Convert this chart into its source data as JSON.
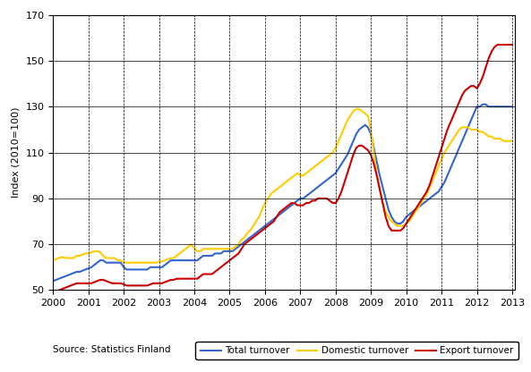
{
  "title": "",
  "ylabel": "Index (2010=100)",
  "source_text": "Source: Statistics Finland",
  "legend_labels": [
    "Total turnover",
    "Domestic turnover",
    "Export turnover"
  ],
  "legend_colors": [
    "#3366cc",
    "#ffcc00",
    "#cc0000"
  ],
  "ylim": [
    50,
    170
  ],
  "yticks": [
    50,
    70,
    90,
    110,
    130,
    150,
    170
  ],
  "xlim_start": 2000.0,
  "xlim_end": 2013.083,
  "xtick_labels": [
    "2000",
    "2001",
    "2002",
    "2003",
    "2004",
    "2005",
    "2006",
    "2007",
    "2008",
    "2009",
    "2010",
    "2011",
    "2012",
    "2013"
  ],
  "total_turnover": [
    54,
    54.5,
    55,
    55.5,
    56,
    56.5,
    57,
    57.5,
    58,
    58,
    58.5,
    59,
    59.5,
    60,
    61,
    62,
    63,
    63,
    62,
    62,
    62,
    62,
    62,
    62,
    60,
    59,
    59,
    59,
    59,
    59,
    59,
    59,
    59,
    60,
    60,
    60,
    60,
    60,
    61,
    62,
    63,
    63,
    63,
    63,
    63,
    63,
    63,
    63,
    63,
    63,
    64,
    65,
    65,
    65,
    65,
    66,
    66,
    66,
    67,
    67,
    67,
    67,
    68,
    69,
    70,
    71,
    72,
    73,
    74,
    75,
    76,
    77,
    78,
    79,
    80,
    81,
    82,
    83,
    84,
    85,
    86,
    87,
    88,
    89,
    90,
    90,
    91,
    92,
    93,
    94,
    95,
    96,
    97,
    98,
    99,
    100,
    101,
    103,
    105,
    107,
    109,
    112,
    115,
    118,
    120,
    121,
    122,
    121,
    118,
    112,
    106,
    100,
    95,
    90,
    85,
    82,
    80,
    79,
    79,
    80,
    82,
    83,
    84,
    85,
    86,
    87,
    88,
    89,
    90,
    91,
    92,
    93,
    95,
    97,
    100,
    103,
    106,
    109,
    112,
    115,
    118,
    121,
    124,
    127,
    130,
    130,
    131,
    131,
    130,
    130,
    130,
    130,
    130,
    130,
    130,
    130,
    130
  ],
  "domestic_turnover": [
    63,
    63.5,
    64,
    64.5,
    64,
    64,
    64,
    64,
    65,
    65,
    65.5,
    66,
    66,
    66.5,
    67,
    67,
    66.5,
    65,
    64,
    64,
    64,
    64,
    63,
    63,
    62,
    62,
    62,
    62,
    62,
    62,
    62,
    62,
    62,
    62,
    62,
    62,
    62.5,
    62.5,
    63,
    63.5,
    64,
    64,
    65,
    66,
    67,
    68,
    69,
    70,
    68,
    67,
    67,
    68,
    68,
    68,
    68,
    68,
    68,
    68,
    68,
    68,
    68,
    68,
    69,
    70,
    72,
    73,
    75,
    76,
    78,
    80,
    82,
    85,
    88,
    90,
    92,
    93,
    94,
    95,
    96,
    97,
    98,
    99,
    100,
    101,
    100,
    100,
    101,
    102,
    103,
    104,
    105,
    106,
    107,
    108,
    109,
    110,
    112,
    115,
    118,
    121,
    124,
    126,
    128,
    129,
    129,
    128,
    127,
    126,
    120,
    110,
    100,
    94,
    88,
    84,
    82,
    80,
    79,
    78,
    78,
    78,
    79,
    80,
    82,
    84,
    86,
    88,
    90,
    92,
    95,
    98,
    101,
    104,
    107,
    110,
    112,
    114,
    116,
    118,
    120,
    121,
    121,
    121,
    120,
    120,
    120,
    119,
    119,
    118,
    117,
    117,
    116,
    116,
    116,
    115,
    115,
    115,
    115
  ],
  "export_turnover": [
    49,
    49.5,
    50,
    50.5,
    51,
    51.5,
    52,
    52.5,
    53,
    53,
    53,
    53,
    53,
    53,
    53.5,
    54,
    54.5,
    54.5,
    54,
    53.5,
    53,
    53,
    53,
    53,
    52.5,
    52,
    52,
    52,
    52,
    52,
    52,
    52,
    52,
    52.5,
    53,
    53,
    53,
    53,
    53.5,
    54,
    54.5,
    54.5,
    55,
    55,
    55,
    55,
    55,
    55,
    55,
    55,
    56,
    57,
    57,
    57,
    57,
    58,
    59,
    60,
    61,
    62,
    63,
    64,
    65,
    66,
    68,
    70,
    71,
    72,
    73,
    74,
    75,
    76,
    77,
    78,
    79,
    80,
    82,
    84,
    85,
    86,
    87,
    88,
    88,
    87,
    87,
    87,
    88,
    88,
    89,
    89,
    90,
    90,
    90,
    90,
    89,
    88,
    88,
    90,
    93,
    97,
    101,
    105,
    109,
    112,
    113,
    113,
    112,
    111,
    109,
    105,
    100,
    94,
    88,
    82,
    78,
    76,
    76,
    76,
    76,
    77,
    79,
    81,
    83,
    85,
    87,
    89,
    91,
    93,
    96,
    100,
    104,
    108,
    112,
    116,
    120,
    123,
    126,
    129,
    132,
    135,
    137,
    138,
    139,
    139,
    138,
    140,
    143,
    147,
    151,
    154,
    156,
    157,
    157,
    157,
    157,
    157,
    157
  ]
}
